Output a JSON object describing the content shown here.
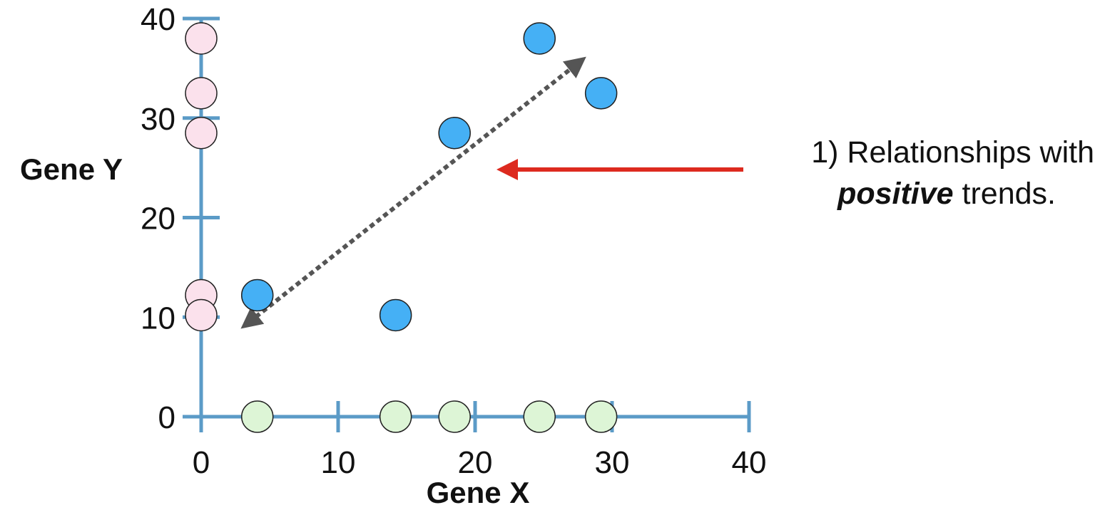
{
  "chart_data": {
    "type": "scatter",
    "xlabel": "Gene X",
    "ylabel": "Gene Y",
    "xlim": [
      0,
      40
    ],
    "ylim": [
      0,
      40
    ],
    "x_ticks": [
      0,
      10,
      20,
      30,
      40
    ],
    "y_ticks": [
      0,
      10,
      20,
      30,
      40
    ],
    "x_tick_labels": [
      "0",
      "10",
      "20",
      "30",
      "40"
    ],
    "y_tick_labels": [
      "0",
      "10",
      "20",
      "30",
      "40"
    ],
    "grid": false,
    "series": [
      {
        "color": "#45b0f5",
        "x": [
          4.1,
          14.2,
          18.5,
          24.7,
          29.2
        ],
        "y": [
          12.2,
          10.2,
          28.5,
          38.0,
          32.5
        ]
      },
      {
        "color": "#fbe1ec",
        "x": [
          0,
          0,
          0,
          0,
          0
        ],
        "y": [
          12.2,
          10.2,
          28.5,
          38.0,
          32.5
        ]
      },
      {
        "color": "#ddf5d6",
        "x": [
          4.1,
          14.2,
          18.5,
          24.7,
          29.2
        ],
        "y": [
          0,
          0,
          0,
          0,
          0
        ]
      }
    ],
    "trend_arrow": {
      "from": [
        3.5,
        9.5
      ],
      "to": [
        27.5,
        35.5
      ],
      "style": "dotted double-headed",
      "color": "#555555"
    },
    "annotation": {
      "prefix": "1) Relationships with",
      "emphasis": "positive",
      "suffix": " trends.",
      "arrow_color": "#dd2a1f"
    },
    "axis_color": "#5b9bc7"
  }
}
